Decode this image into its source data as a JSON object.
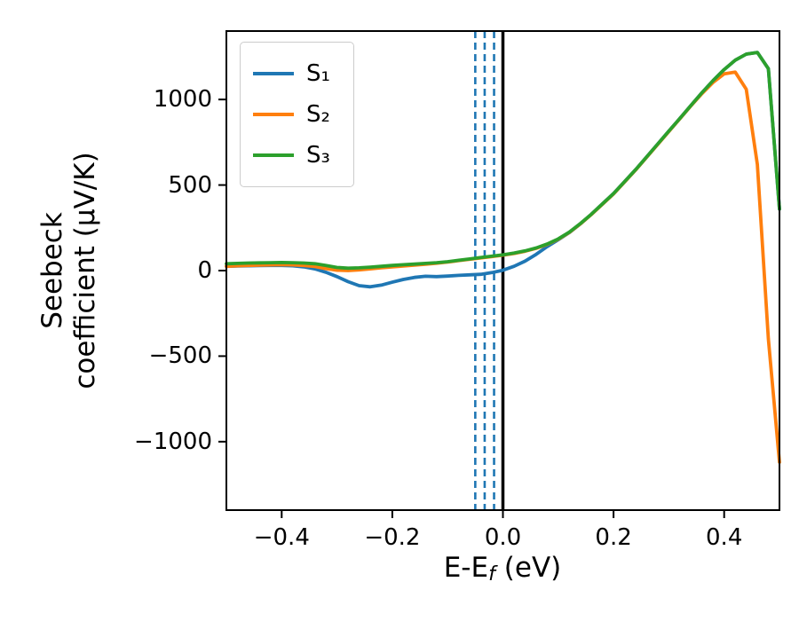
{
  "figure": {
    "ylabel_line1": "Seebeck",
    "ylabel_line2": "coefficient  (μV/K)",
    "xlabel_prefix": "E-E",
    "xlabel_sub": "f",
    "xlabel_suffix": " (eV)"
  },
  "chart_data": {
    "type": "line",
    "title": "",
    "xlabel": "E-E_f (eV)",
    "ylabel": "Seebeck coefficient (μV/K)",
    "xlim": [
      -0.5,
      0.5
    ],
    "ylim": [
      -1400,
      1400
    ],
    "grid": false,
    "legend_position": "upper left",
    "x": [
      -0.5,
      -0.48,
      -0.46,
      -0.44,
      -0.42,
      -0.4,
      -0.38,
      -0.36,
      -0.34,
      -0.32,
      -0.3,
      -0.28,
      -0.26,
      -0.24,
      -0.22,
      -0.2,
      -0.18,
      -0.16,
      -0.14,
      -0.12,
      -0.1,
      -0.08,
      -0.06,
      -0.04,
      -0.02,
      0,
      0.02,
      0.04,
      0.06,
      0.08,
      0.1,
      0.12,
      0.14,
      0.16,
      0.18,
      0.2,
      0.22,
      0.24,
      0.26,
      0.28,
      0.3,
      0.32,
      0.34,
      0.36,
      0.38,
      0.4,
      0.42,
      0.44,
      0.46,
      0.48,
      0.5
    ],
    "series": [
      {
        "name": "S1",
        "label": "S₁",
        "color": "#1f77b4",
        "values": [
          25,
          27,
          28,
          29,
          30,
          30,
          28,
          22,
          10,
          -10,
          -35,
          -65,
          -88,
          -95,
          -85,
          -68,
          -52,
          -40,
          -33,
          -35,
          -32,
          -28,
          -25,
          -22,
          -12,
          2,
          25,
          55,
          95,
          140,
          180,
          222,
          273,
          330,
          390,
          450,
          520,
          590,
          665,
          740,
          815,
          890,
          965,
          1040,
          1110,
          1175,
          1230,
          1265,
          1275,
          1180,
          360
        ]
      },
      {
        "name": "S2",
        "label": "S₂",
        "color": "#ff7f0e",
        "values": [
          25,
          28,
          30,
          32,
          33,
          34,
          33,
          30,
          24,
          12,
          2,
          0,
          4,
          10,
          16,
          22,
          27,
          32,
          37,
          43,
          50,
          58,
          66,
          74,
          82,
          90,
          100,
          113,
          130,
          153,
          183,
          223,
          273,
          328,
          388,
          448,
          518,
          588,
          663,
          738,
          813,
          888,
          963,
          1035,
          1100,
          1150,
          1160,
          1060,
          620,
          -400,
          -1120
        ]
      },
      {
        "name": "S3",
        "label": "S₃",
        "color": "#2ca02c",
        "values": [
          40,
          42,
          44,
          45,
          46,
          47,
          46,
          44,
          40,
          30,
          18,
          14,
          16,
          20,
          25,
          30,
          34,
          38,
          42,
          46,
          52,
          60,
          68,
          76,
          84,
          92,
          102,
          115,
          132,
          155,
          185,
          225,
          275,
          330,
          390,
          450,
          520,
          590,
          665,
          740,
          815,
          890,
          965,
          1040,
          1110,
          1175,
          1230,
          1265,
          1275,
          1180,
          360
        ]
      }
    ],
    "vlines_dashed": {
      "color": "#1f77b4",
      "positions": [
        -0.05,
        -0.033,
        -0.016
      ]
    },
    "vline_solid": {
      "color": "#000000",
      "position": 0.0
    },
    "xticks": {
      "values": [
        -0.4,
        -0.2,
        0.0,
        0.2,
        0.4
      ],
      "labels": [
        "−0.4",
        "−0.2",
        "0.0",
        "0.2",
        "0.4"
      ]
    },
    "yticks": {
      "values": [
        -1000,
        -500,
        0,
        500,
        1000
      ],
      "labels": [
        "−1000",
        "−500",
        "0",
        "500",
        "1000"
      ]
    }
  }
}
